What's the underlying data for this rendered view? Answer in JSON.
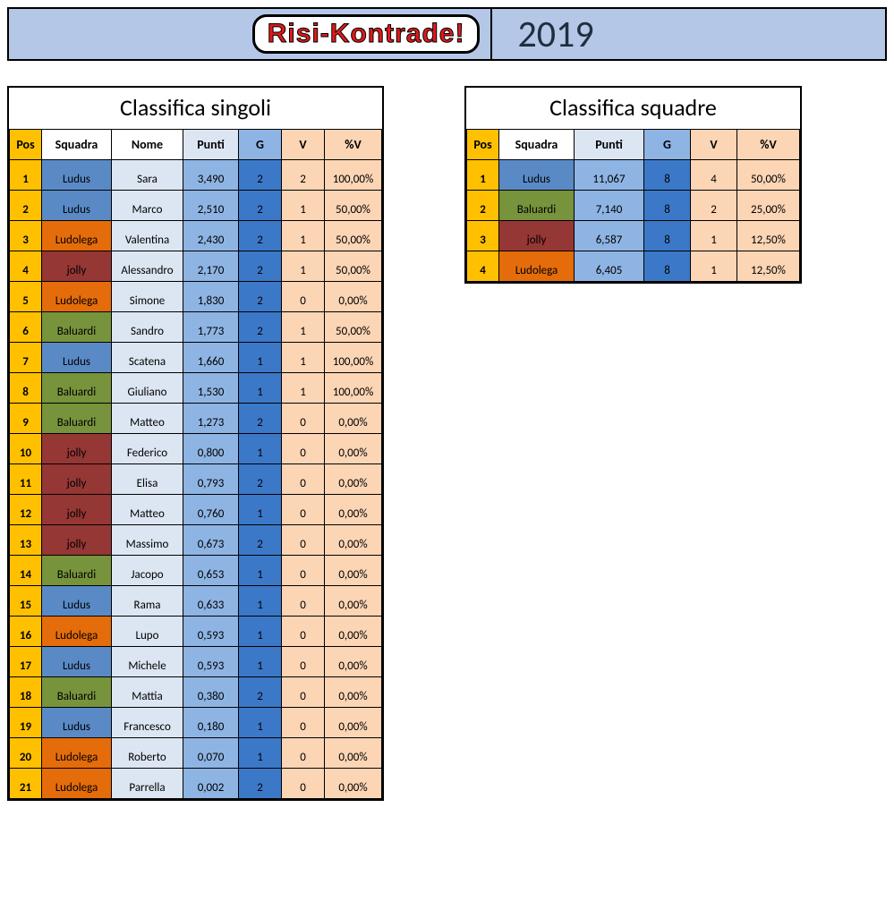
{
  "banner": {
    "logo_text": "Risi-Kontrade!",
    "year": "2019",
    "bg": "#b4c7e7",
    "logo_color": "#e01a1a"
  },
  "colors": {
    "pos_bg": "#ffc000",
    "nome_bg": "#dce6f2",
    "punti_bg": "#8eb4e3",
    "g_bg": "#3c78c8",
    "v_bg": "#fcd5b5",
    "pct_bg": "#fcd5b5"
  },
  "team_colors": {
    "Ludus": "#5a8ac6",
    "Ludolega": "#e46c0a",
    "jolly": "#953735",
    "Baluardi": "#77933c"
  },
  "singles": {
    "title": "Classifica singoli",
    "columns": [
      "Pos",
      "Squadra",
      "Nome",
      "Punti",
      "G",
      "V",
      "%V"
    ],
    "rows": [
      {
        "pos": "1",
        "squadra": "Ludus",
        "nome": "Sara",
        "punti": "3,490",
        "g": "2",
        "v": "2",
        "pct": "100,00%"
      },
      {
        "pos": "2",
        "squadra": "Ludus",
        "nome": "Marco",
        "punti": "2,510",
        "g": "2",
        "v": "1",
        "pct": "50,00%"
      },
      {
        "pos": "3",
        "squadra": "Ludolega",
        "nome": "Valentina",
        "punti": "2,430",
        "g": "2",
        "v": "1",
        "pct": "50,00%"
      },
      {
        "pos": "4",
        "squadra": "jolly",
        "nome": "Alessandro",
        "punti": "2,170",
        "g": "2",
        "v": "1",
        "pct": "50,00%"
      },
      {
        "pos": "5",
        "squadra": "Ludolega",
        "nome": "Simone",
        "punti": "1,830",
        "g": "2",
        "v": "0",
        "pct": "0,00%"
      },
      {
        "pos": "6",
        "squadra": "Baluardi",
        "nome": "Sandro",
        "punti": "1,773",
        "g": "2",
        "v": "1",
        "pct": "50,00%"
      },
      {
        "pos": "7",
        "squadra": "Ludus",
        "nome": "Scatena",
        "punti": "1,660",
        "g": "1",
        "v": "1",
        "pct": "100,00%"
      },
      {
        "pos": "8",
        "squadra": "Baluardi",
        "nome": "Giuliano",
        "punti": "1,530",
        "g": "1",
        "v": "1",
        "pct": "100,00%"
      },
      {
        "pos": "9",
        "squadra": "Baluardi",
        "nome": "Matteo",
        "punti": "1,273",
        "g": "2",
        "v": "0",
        "pct": "0,00%"
      },
      {
        "pos": "10",
        "squadra": "jolly",
        "nome": "Federico",
        "punti": "0,800",
        "g": "1",
        "v": "0",
        "pct": "0,00%"
      },
      {
        "pos": "11",
        "squadra": "jolly",
        "nome": "Elisa",
        "punti": "0,793",
        "g": "2",
        "v": "0",
        "pct": "0,00%"
      },
      {
        "pos": "12",
        "squadra": "jolly",
        "nome": "Matteo",
        "punti": "0,760",
        "g": "1",
        "v": "0",
        "pct": "0,00%"
      },
      {
        "pos": "13",
        "squadra": "jolly",
        "nome": "Massimo",
        "punti": "0,673",
        "g": "2",
        "v": "0",
        "pct": "0,00%"
      },
      {
        "pos": "14",
        "squadra": "Baluardi",
        "nome": "Jacopo",
        "punti": "0,653",
        "g": "1",
        "v": "0",
        "pct": "0,00%"
      },
      {
        "pos": "15",
        "squadra": "Ludus",
        "nome": "Rama",
        "punti": "0,633",
        "g": "1",
        "v": "0",
        "pct": "0,00%"
      },
      {
        "pos": "16",
        "squadra": "Ludolega",
        "nome": "Lupo",
        "punti": "0,593",
        "g": "1",
        "v": "0",
        "pct": "0,00%"
      },
      {
        "pos": "17",
        "squadra": "Ludus",
        "nome": "Michele",
        "punti": "0,593",
        "g": "1",
        "v": "0",
        "pct": "0,00%"
      },
      {
        "pos": "18",
        "squadra": "Baluardi",
        "nome": "Mattia",
        "punti": "0,380",
        "g": "2",
        "v": "0",
        "pct": "0,00%"
      },
      {
        "pos": "19",
        "squadra": "Ludus",
        "nome": "Francesco",
        "punti": "0,180",
        "g": "1",
        "v": "0",
        "pct": "0,00%"
      },
      {
        "pos": "20",
        "squadra": "Ludolega",
        "nome": "Roberto",
        "punti": "0,070",
        "g": "1",
        "v": "0",
        "pct": "0,00%"
      },
      {
        "pos": "21",
        "squadra": "Ludolega",
        "nome": "Parrella",
        "punti": "0,002",
        "g": "2",
        "v": "0",
        "pct": "0,00%"
      }
    ]
  },
  "teams": {
    "title": "Classifica squadre",
    "columns": [
      "Pos",
      "Squadra",
      "Punti",
      "G",
      "V",
      "%V"
    ],
    "rows": [
      {
        "pos": "1",
        "squadra": "Ludus",
        "punti": "11,067",
        "g": "8",
        "v": "4",
        "pct": "50,00%"
      },
      {
        "pos": "2",
        "squadra": "Baluardi",
        "punti": "7,140",
        "g": "8",
        "v": "2",
        "pct": "25,00%"
      },
      {
        "pos": "3",
        "squadra": "jolly",
        "punti": "6,587",
        "g": "8",
        "v": "1",
        "pct": "12,50%"
      },
      {
        "pos": "4",
        "squadra": "Ludolega",
        "punti": "6,405",
        "g": "8",
        "v": "1",
        "pct": "12,50%"
      }
    ]
  }
}
